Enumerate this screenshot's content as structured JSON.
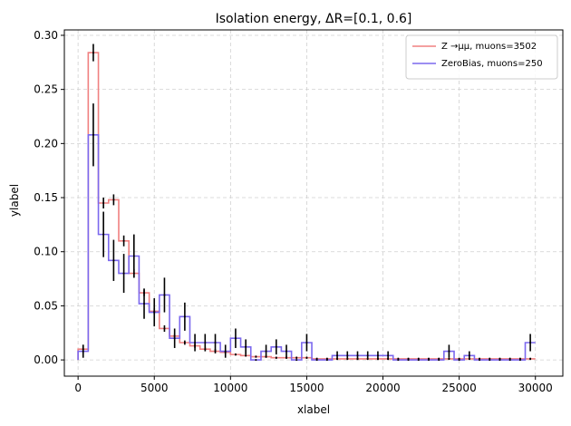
{
  "chart_data": {
    "type": "histogram-step",
    "title": "Isolation energy, ΔR=[0.1, 0.6]",
    "xlabel": "xlabel",
    "ylabel": "ylabel",
    "xlim": [
      -900,
      31800
    ],
    "ylim": [
      -0.015,
      0.305
    ],
    "xticks": [
      0,
      5000,
      10000,
      15000,
      20000,
      25000,
      30000
    ],
    "yticks": [
      0.0,
      0.05,
      0.1,
      0.15,
      0.2,
      0.25,
      0.3
    ],
    "grid": true,
    "legend_position": "top-right",
    "bin_edges": [
      0,
      667,
      1333,
      2000,
      2667,
      3333,
      4000,
      4667,
      5333,
      6000,
      6667,
      7333,
      8000,
      8667,
      9333,
      10000,
      10667,
      11333,
      12000,
      12667,
      13333,
      14000,
      14667,
      15333,
      16000,
      16667,
      17333,
      18000,
      18667,
      19333,
      20000,
      20667,
      21333,
      22000,
      22667,
      23333,
      24000,
      24667,
      25333,
      26000,
      26667,
      27333,
      28000,
      28667,
      29333,
      30000
    ],
    "series": [
      {
        "name": "Z→μμ, muons=3502",
        "legend_label": "Z →μμ, muons=3502",
        "color": "#f08080",
        "values": [
          0.01,
          0.284,
          0.145,
          0.148,
          0.11,
          0.08,
          0.062,
          0.045,
          0.029,
          0.022,
          0.016,
          0.013,
          0.01,
          0.008,
          0.007,
          0.005,
          0.004,
          0.003,
          0.003,
          0.002,
          0.002,
          0.002,
          0.002,
          0.001,
          0.001,
          0.001,
          0.001,
          0.001,
          0.001,
          0.001,
          0.001,
          0.001,
          0.001,
          0.001,
          0.001,
          0.001,
          0.001,
          0.001,
          0.001,
          0.001,
          0.001,
          0.001,
          0.001,
          0.001,
          0.001
        ],
        "errors": [
          0.004,
          0.008,
          0.005,
          0.005,
          0.005,
          0.004,
          0.003,
          0.003,
          0.003,
          0.002,
          0.002,
          0.002,
          0.002,
          0.002,
          0.001,
          0.001,
          0.001,
          0.001,
          0.001,
          0.001,
          0.001,
          0.001,
          0.001,
          0.001,
          0.001,
          0.001,
          0.001,
          0.001,
          0.001,
          0.001,
          0.001,
          0.001,
          0.001,
          0.001,
          0.001,
          0.001,
          0.001,
          0.001,
          0.001,
          0.001,
          0.001,
          0.001,
          0.001,
          0.001,
          0.001
        ]
      },
      {
        "name": "ZeroBias, muons=250",
        "legend_label": "ZeroBias, muons=250",
        "color": "#7b68ee",
        "values": [
          0.008,
          0.208,
          0.116,
          0.092,
          0.08,
          0.096,
          0.052,
          0.044,
          0.06,
          0.02,
          0.04,
          0.016,
          0.016,
          0.016,
          0.008,
          0.02,
          0.012,
          0.0,
          0.008,
          0.012,
          0.008,
          0.0,
          0.016,
          0.0,
          0.0,
          0.004,
          0.004,
          0.004,
          0.004,
          0.004,
          0.004,
          0.0,
          0.0,
          0.0,
          0.0,
          0.0,
          0.008,
          0.0,
          0.004,
          0.0,
          0.0,
          0.0,
          0.0,
          0.0,
          0.016
        ],
        "errors": [
          0.006,
          0.029,
          0.021,
          0.019,
          0.018,
          0.02,
          0.014,
          0.013,
          0.016,
          0.009,
          0.013,
          0.008,
          0.008,
          0.008,
          0.006,
          0.009,
          0.007,
          0.0,
          0.006,
          0.007,
          0.006,
          0.0,
          0.008,
          0.0,
          0.0,
          0.004,
          0.004,
          0.004,
          0.004,
          0.004,
          0.004,
          0.0,
          0.0,
          0.0,
          0.0,
          0.0,
          0.006,
          0.0,
          0.004,
          0.0,
          0.0,
          0.0,
          0.0,
          0.0,
          0.008
        ]
      }
    ]
  }
}
